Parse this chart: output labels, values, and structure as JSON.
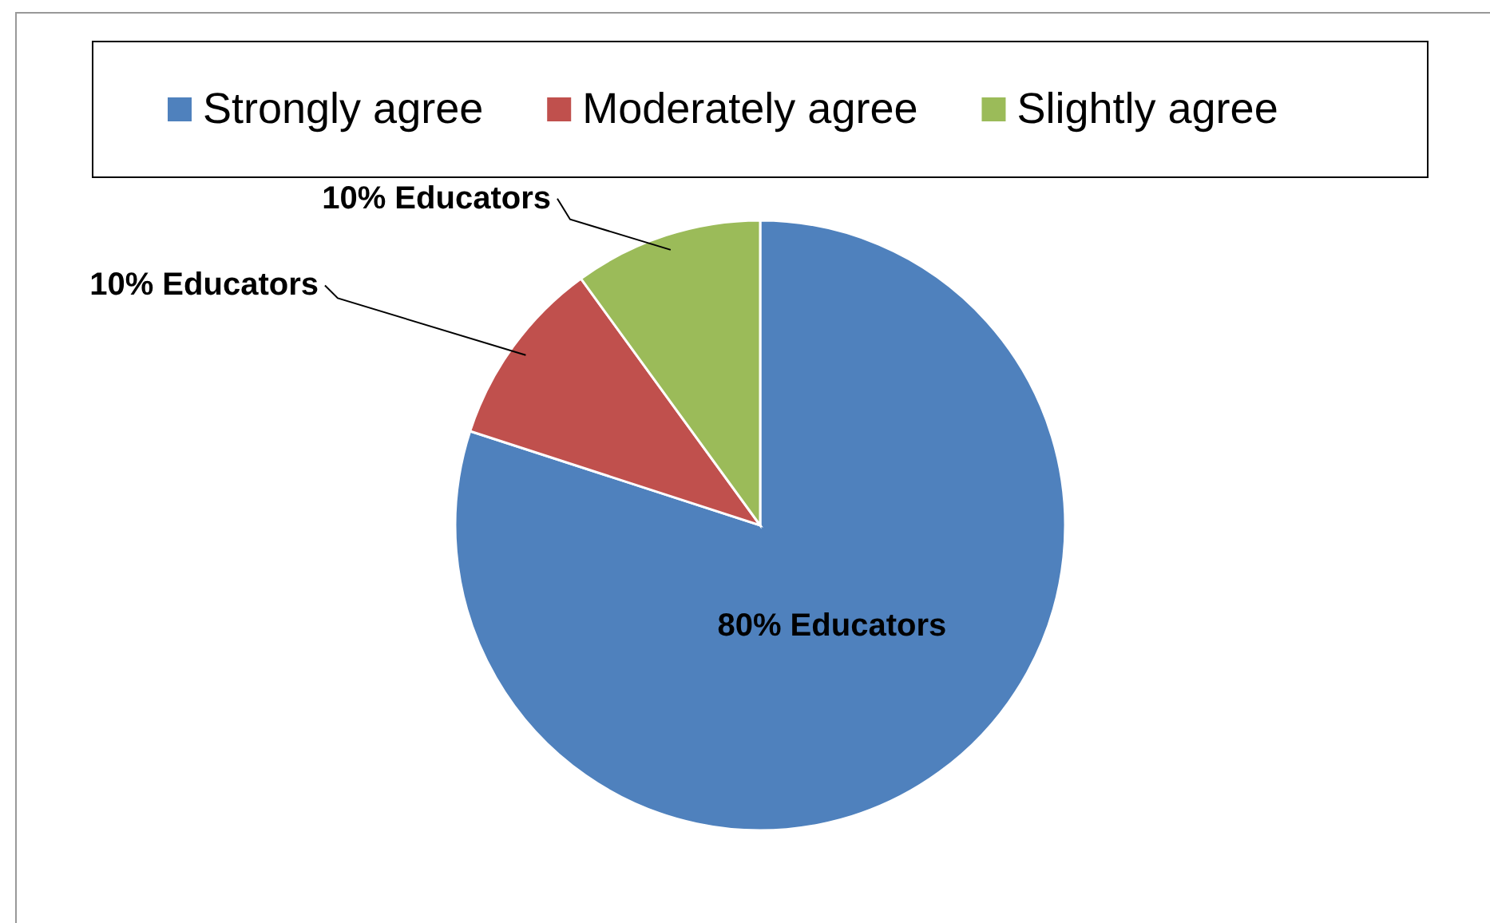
{
  "chart_data": {
    "type": "pie",
    "categories": [
      "Strongly agree",
      "Moderately agree",
      "Slightly agree"
    ],
    "values": [
      80,
      10,
      10
    ],
    "colors": [
      "#4f81bd",
      "#c0504d",
      "#9bbb59"
    ],
    "value_labels": [
      "80%  Educators",
      "10% Educators",
      "10% Educators"
    ],
    "legend": "top"
  }
}
